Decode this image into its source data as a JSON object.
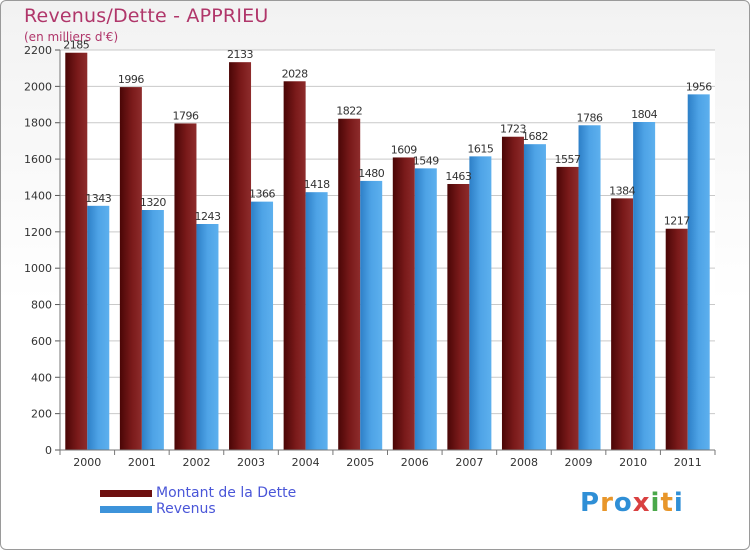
{
  "header": {
    "title": "Revenus/Dette - APPRIEU",
    "subtitle": "(en milliers d'€)"
  },
  "colors": {
    "dette": "#6e1010",
    "revenus": "#3d93da",
    "title": "#b0366a",
    "legend_text": "#4a56d8"
  },
  "legend": [
    {
      "label": "Montant de la Dette",
      "color": "#6e1010"
    },
    {
      "label": "Revenus",
      "color": "#3d93da"
    }
  ],
  "logo": {
    "text": "Proxiti"
  },
  "chart_data": {
    "type": "bar",
    "title": "Revenus/Dette - APPRIEU",
    "subtitle": "(en milliers d'€)",
    "categories": [
      "2000",
      "2001",
      "2002",
      "2003",
      "2004",
      "2005",
      "2006",
      "2007",
      "2008",
      "2009",
      "2010",
      "2011"
    ],
    "series": [
      {
        "name": "Montant de la Dette",
        "values": [
          2185,
          1996,
          1796,
          2133,
          2028,
          1822,
          1609,
          1463,
          1723,
          1557,
          1384,
          1217
        ]
      },
      {
        "name": "Revenus",
        "values": [
          1343,
          1320,
          1243,
          1366,
          1418,
          1480,
          1549,
          1615,
          1682,
          1786,
          1804,
          1956
        ]
      }
    ],
    "ylim": [
      0,
      2200
    ],
    "yticks": [
      0,
      200,
      400,
      600,
      800,
      1000,
      1200,
      1400,
      1600,
      1800,
      2000,
      2200
    ],
    "grid": true,
    "legend_position": "bottom-left"
  }
}
